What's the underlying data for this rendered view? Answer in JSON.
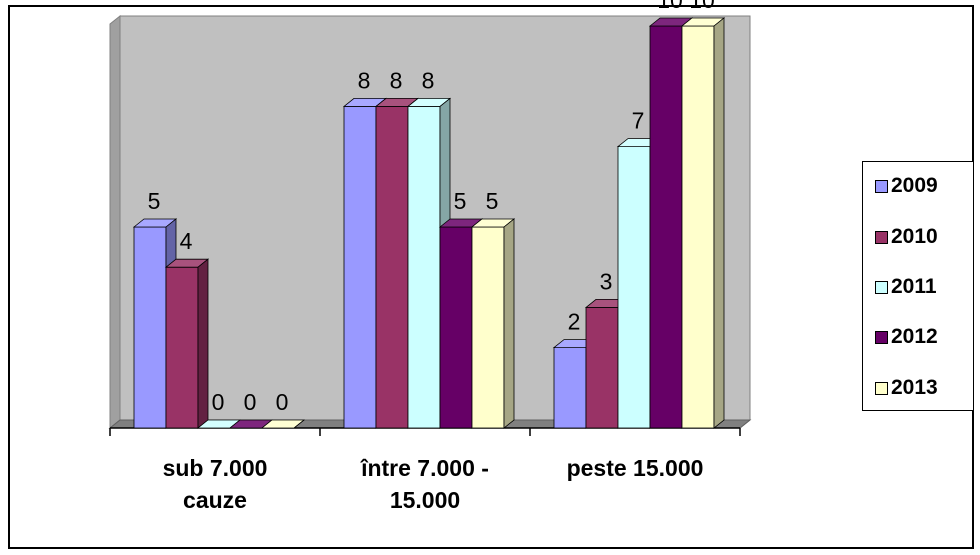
{
  "chart_data": {
    "type": "bar",
    "categories": [
      "sub 7.000\ncauze",
      "între 7.000 -\n15.000",
      "peste 15.000"
    ],
    "series": [
      {
        "name": "2009",
        "values": [
          5,
          8,
          2
        ],
        "color": "#9999ff"
      },
      {
        "name": "2010",
        "values": [
          4,
          8,
          3
        ],
        "color": "#993366"
      },
      {
        "name": "2011",
        "values": [
          0,
          8,
          7
        ],
        "color": "#ccffff"
      },
      {
        "name": "2012",
        "values": [
          0,
          5,
          10
        ],
        "color": "#660066"
      },
      {
        "name": "2013",
        "values": [
          0,
          5,
          10
        ],
        "color": "#ffffcc"
      }
    ],
    "ylim": [
      0,
      10
    ],
    "grid": false,
    "legend_position": "right",
    "plot_background": "#c0c0c0"
  }
}
